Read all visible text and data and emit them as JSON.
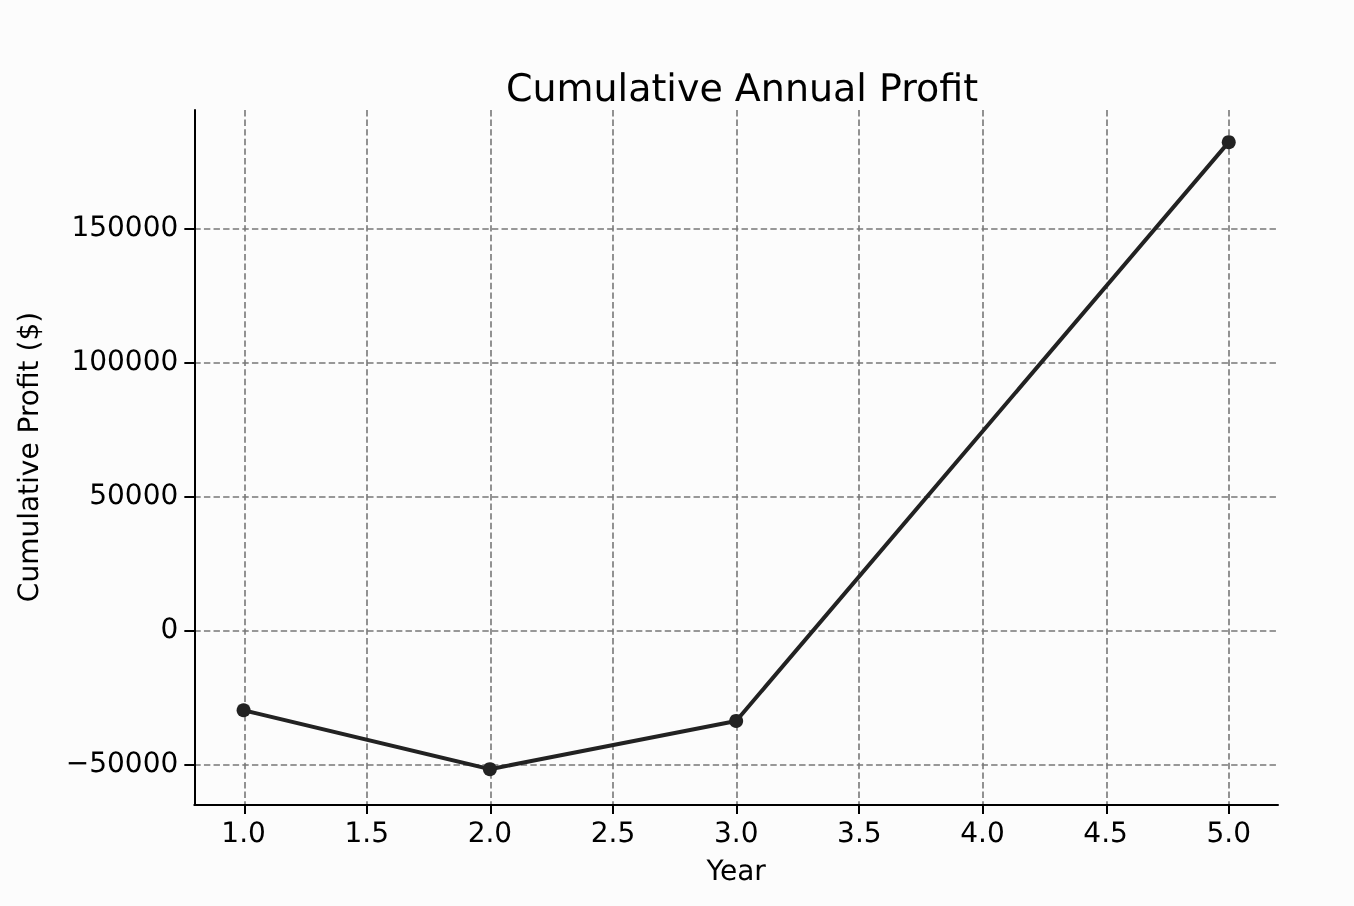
{
  "chart_data": {
    "type": "line",
    "title": "Cumulative Annual Profit",
    "xlabel": "Year",
    "ylabel": "Cumulative Profit ($)",
    "x": [
      1,
      2,
      3,
      5
    ],
    "series": [
      {
        "color": "#222222",
        "values": [
          -30000,
          -52000,
          -34000,
          182000
        ]
      }
    ],
    "xlim": [
      0.8,
      5.2
    ],
    "xticks": [
      {
        "value": 1,
        "label": "1.0"
      },
      {
        "value": 1.5,
        "label": "1.5"
      },
      {
        "value": 2,
        "label": "2.0"
      },
      {
        "value": 2.5,
        "label": "2.5"
      },
      {
        "value": 3,
        "label": "3.0"
      },
      {
        "value": 3.5,
        "label": "3.5"
      },
      {
        "value": 4,
        "label": "4.0"
      },
      {
        "value": 4.5,
        "label": "4.5"
      },
      {
        "value": 5,
        "label": "5.0"
      }
    ],
    "ylim": [
      -65000,
      194000
    ],
    "yticks": [
      {
        "value": -50000,
        "label": "−50000"
      },
      0,
      50000,
      100000,
      150000
    ],
    "grid": true,
    "marker": "circle",
    "line_style": "solid"
  }
}
